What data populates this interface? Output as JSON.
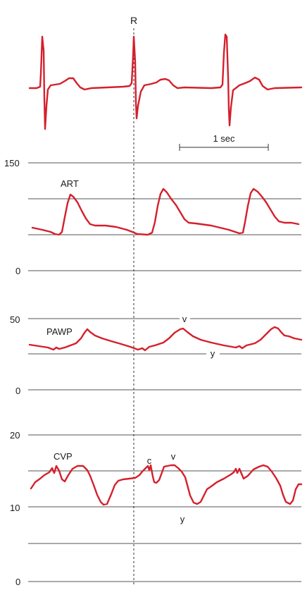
{
  "figure": {
    "marker_label": "R",
    "scale_label": "1 sec",
    "trace_color": "#d4202c"
  },
  "panels": [
    {
      "id": "ecg",
      "label": "",
      "axis_ticks": []
    },
    {
      "id": "art",
      "label": "ART",
      "axis_ticks": [
        "150",
        "0"
      ]
    },
    {
      "id": "pawp",
      "label": "PAWP",
      "axis_ticks": [
        "50",
        "0"
      ],
      "annotations": [
        "v",
        "y"
      ]
    },
    {
      "id": "cvp",
      "label": "CVP",
      "axis_ticks": [
        "20",
        "10",
        "0"
      ],
      "annotations": [
        "c",
        "v",
        "y"
      ]
    }
  ]
}
